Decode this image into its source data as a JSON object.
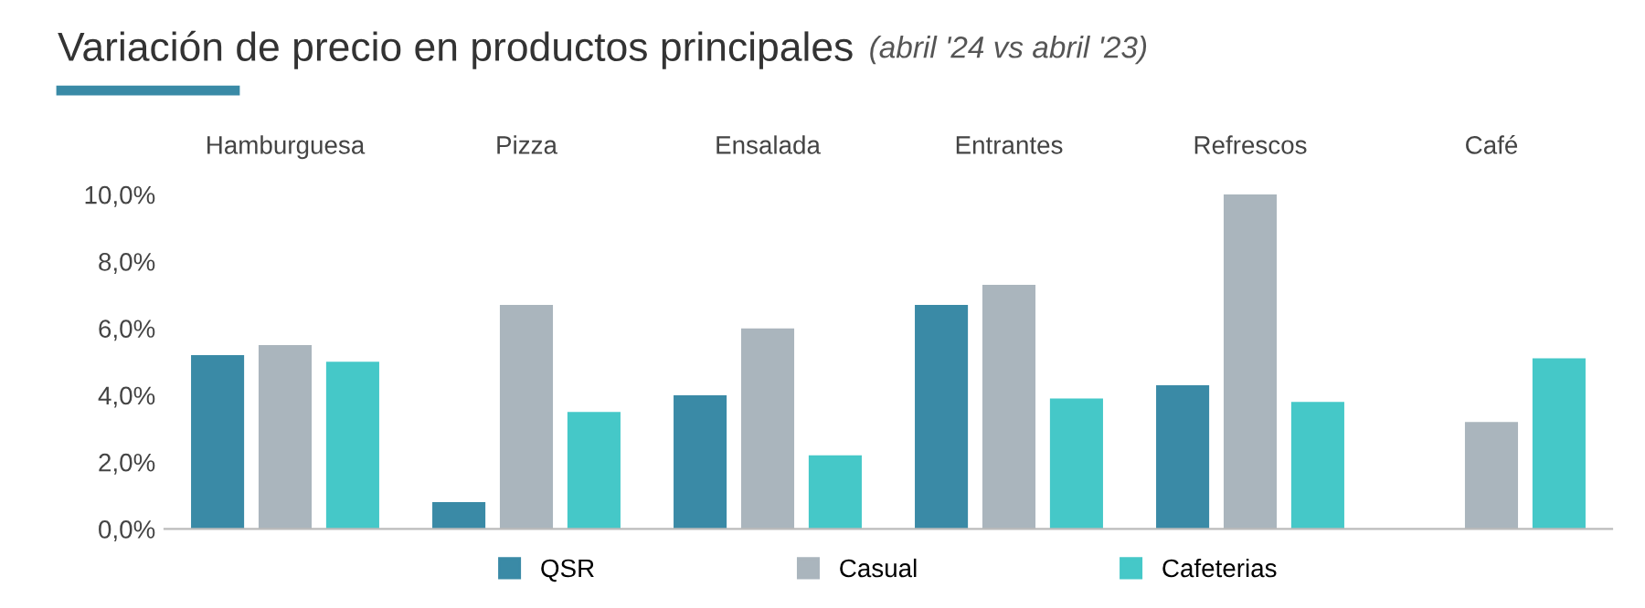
{
  "chart_data": {
    "type": "bar",
    "title": "Variación de precio en productos principales",
    "subtitle": "(abril '24 vs abril '23)",
    "categories": [
      "Hamburguesa",
      "Pizza",
      "Ensalada",
      "Entrantes",
      "Refrescos",
      "Café"
    ],
    "series": [
      {
        "name": "QSR",
        "color": "#3a8aa6",
        "values": [
          5.2,
          0.8,
          4.0,
          6.7,
          4.3,
          null
        ]
      },
      {
        "name": "Casual",
        "color": "#aab5bd",
        "values": [
          5.5,
          6.7,
          6.0,
          7.3,
          10.0,
          3.2
        ]
      },
      {
        "name": "Cafeterias",
        "color": "#45c8c8",
        "values": [
          5.0,
          3.5,
          2.2,
          3.9,
          3.8,
          5.1
        ]
      }
    ],
    "ylim": [
      0,
      10
    ],
    "yticks": [
      {
        "value": 0,
        "label": "0,0%"
      },
      {
        "value": 2,
        "label": "2,0%"
      },
      {
        "value": 4,
        "label": "4,0%"
      },
      {
        "value": 6,
        "label": "6,0%"
      },
      {
        "value": 8,
        "label": "8,0%"
      },
      {
        "value": 10,
        "label": "10,0%"
      }
    ],
    "grid": false,
    "legend": "bottom"
  }
}
